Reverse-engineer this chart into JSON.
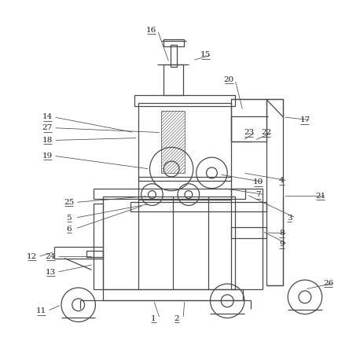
{
  "bg_color": "#ffffff",
  "lc": "#4a4a4a",
  "lw": 0.9,
  "fs": 7.5,
  "label_color": "#222222"
}
